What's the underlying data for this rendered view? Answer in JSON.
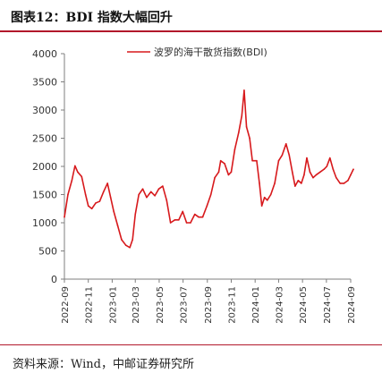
{
  "header": {
    "title": "图表12：BDI 指数大幅回升"
  },
  "footer": {
    "source": "资料来源：Wind，中邮证券研究所"
  },
  "colors": {
    "series": "#d7191c",
    "rule": "#b2182b",
    "axis": "#7f7f7f",
    "text": "#333333"
  },
  "chart_data": {
    "type": "line",
    "title": "",
    "xlabel": "",
    "ylabel": "",
    "ylim": [
      0,
      4000
    ],
    "yticks": [
      0,
      500,
      1000,
      1500,
      2000,
      2500,
      3000,
      3500,
      4000
    ],
    "xticks": [
      "2022-09",
      "2022-11",
      "2023-01",
      "2023-03",
      "2023-05",
      "2023-07",
      "2023-09",
      "2023-11",
      "2024-01",
      "2024-03",
      "2024-05",
      "2024-07",
      "2024-09"
    ],
    "grid": false,
    "legend_position": "top-center",
    "series": [
      {
        "name": "波罗的海干散货指数(BDI)",
        "points": [
          [
            "2022-09-01",
            1100
          ],
          [
            "2022-09-10",
            1500
          ],
          [
            "2022-09-20",
            1750
          ],
          [
            "2022-09-28",
            2010
          ],
          [
            "2022-10-05",
            1900
          ],
          [
            "2022-10-15",
            1820
          ],
          [
            "2022-10-25",
            1500
          ],
          [
            "2022-11-01",
            1300
          ],
          [
            "2022-11-10",
            1250
          ],
          [
            "2022-11-20",
            1350
          ],
          [
            "2022-11-30",
            1380
          ],
          [
            "2022-12-10",
            1550
          ],
          [
            "2022-12-20",
            1700
          ],
          [
            "2022-12-28",
            1450
          ],
          [
            "2023-01-05",
            1200
          ],
          [
            "2023-01-15",
            950
          ],
          [
            "2023-01-25",
            700
          ],
          [
            "2023-02-05",
            600
          ],
          [
            "2023-02-15",
            560
          ],
          [
            "2023-02-22",
            700
          ],
          [
            "2023-03-01",
            1150
          ],
          [
            "2023-03-10",
            1500
          ],
          [
            "2023-03-20",
            1600
          ],
          [
            "2023-03-30",
            1450
          ],
          [
            "2023-04-10",
            1550
          ],
          [
            "2023-04-20",
            1480
          ],
          [
            "2023-04-30",
            1600
          ],
          [
            "2023-05-10",
            1650
          ],
          [
            "2023-05-20",
            1400
          ],
          [
            "2023-05-30",
            1000
          ],
          [
            "2023-06-10",
            1050
          ],
          [
            "2023-06-20",
            1050
          ],
          [
            "2023-06-30",
            1200
          ],
          [
            "2023-07-10",
            1000
          ],
          [
            "2023-07-20",
            1000
          ],
          [
            "2023-07-31",
            1150
          ],
          [
            "2023-08-10",
            1100
          ],
          [
            "2023-08-20",
            1100
          ],
          [
            "2023-08-31",
            1300
          ],
          [
            "2023-09-10",
            1500
          ],
          [
            "2023-09-20",
            1800
          ],
          [
            "2023-09-30",
            1900
          ],
          [
            "2023-10-05",
            2100
          ],
          [
            "2023-10-15",
            2050
          ],
          [
            "2023-10-25",
            1850
          ],
          [
            "2023-11-01",
            1900
          ],
          [
            "2023-11-10",
            2300
          ],
          [
            "2023-11-20",
            2600
          ],
          [
            "2023-11-28",
            2900
          ],
          [
            "2023-12-04",
            3350
          ],
          [
            "2023-12-10",
            2700
          ],
          [
            "2023-12-18",
            2500
          ],
          [
            "2023-12-25",
            2100
          ],
          [
            "2024-01-05",
            2100
          ],
          [
            "2024-01-12",
            1700
          ],
          [
            "2024-01-18",
            1300
          ],
          [
            "2024-01-25",
            1450
          ],
          [
            "2024-02-01",
            1400
          ],
          [
            "2024-02-10",
            1500
          ],
          [
            "2024-02-20",
            1700
          ],
          [
            "2024-03-01",
            2100
          ],
          [
            "2024-03-10",
            2200
          ],
          [
            "2024-03-20",
            2400
          ],
          [
            "2024-03-28",
            2200
          ],
          [
            "2024-04-05",
            1900
          ],
          [
            "2024-04-12",
            1650
          ],
          [
            "2024-04-20",
            1750
          ],
          [
            "2024-04-28",
            1700
          ],
          [
            "2024-05-05",
            1850
          ],
          [
            "2024-05-12",
            2150
          ],
          [
            "2024-05-20",
            1900
          ],
          [
            "2024-05-28",
            1800
          ],
          [
            "2024-06-05",
            1850
          ],
          [
            "2024-06-15",
            1900
          ],
          [
            "2024-06-25",
            1950
          ],
          [
            "2024-07-02",
            2000
          ],
          [
            "2024-07-10",
            2150
          ],
          [
            "2024-07-18",
            1950
          ],
          [
            "2024-07-26",
            1800
          ],
          [
            "2024-08-05",
            1700
          ],
          [
            "2024-08-15",
            1700
          ],
          [
            "2024-08-25",
            1750
          ],
          [
            "2024-09-01",
            1850
          ],
          [
            "2024-09-08",
            1950
          ]
        ]
      }
    ]
  }
}
